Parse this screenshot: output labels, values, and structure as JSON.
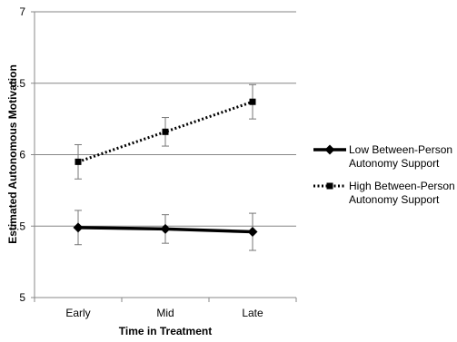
{
  "chart_data": {
    "type": "line",
    "xlabel": "Time in Treatment",
    "ylabel": "Estimated Autonomous Motivation",
    "categories": [
      "Early",
      "Mid",
      "Late"
    ],
    "ylim": [
      5,
      7
    ],
    "yticks": [
      "5",
      "5.5",
      "6",
      "6.5",
      "7"
    ],
    "grid": "horizontal",
    "legend_position": "right",
    "series": [
      {
        "name": "Low Between-Person Autonomy Support",
        "name_lines": [
          "Low Between-Person",
          "Autonomy Support"
        ],
        "style": "solid",
        "marker": "diamond",
        "color": "#000000",
        "values": [
          5.49,
          5.48,
          5.46
        ],
        "error_low": [
          5.37,
          5.38,
          5.33
        ],
        "error_high": [
          5.61,
          5.58,
          5.59
        ]
      },
      {
        "name": "High Between-Person Autonomy Support",
        "name_lines": [
          "High Between-Person",
          "Autonomy Support"
        ],
        "style": "dotted",
        "marker": "square",
        "color": "#000000",
        "values": [
          5.95,
          6.16,
          6.37
        ],
        "error_low": [
          5.83,
          6.06,
          6.25
        ],
        "error_high": [
          6.07,
          6.26,
          6.49
        ]
      }
    ]
  }
}
